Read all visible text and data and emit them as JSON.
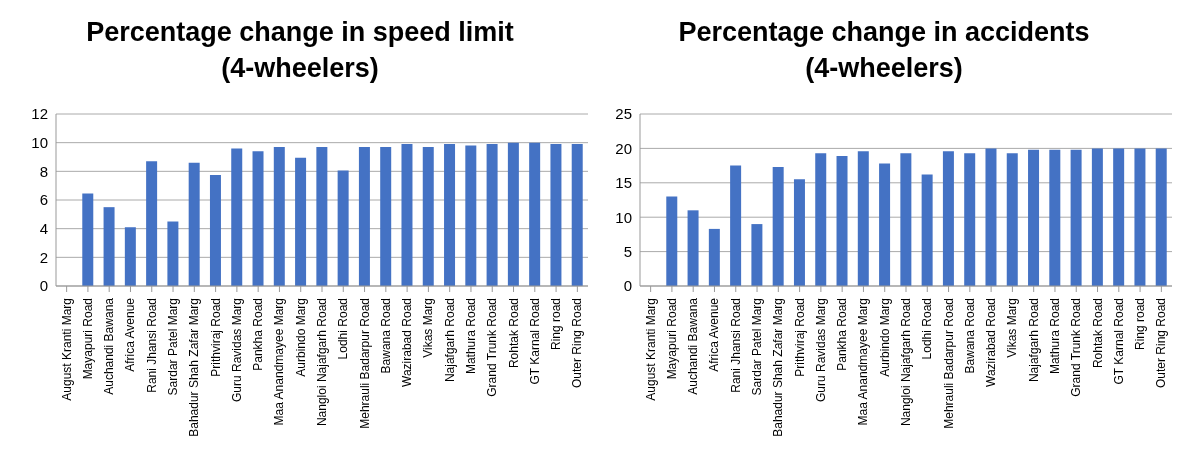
{
  "chart_data": [
    {
      "type": "bar",
      "title": "Percentage change in speed limit\n(4-wheelers)",
      "categories": [
        "August Kranti Marg",
        "Mayapuri Road",
        "Auchandi Bawana",
        "Africa Avenue",
        "Rani Jhansi Road",
        "Sardar Patel Marg",
        "Bahadur Shah Zafar Marg",
        "Prithviraj Road",
        "Guru Ravidas Marg",
        "Pankha Road",
        "Maa Anandmayee Marg",
        "Aurbindo Marg",
        "Nangloi Najafgarh Road",
        "Lodhi Road",
        "Mehrauli Badarpur Road",
        "Bawana Road",
        "Wazirabad Road",
        "Vikas Marg",
        "Najafgarh Road",
        "Mathura Road",
        "Grand Trunk Road",
        "Rohtak Road",
        "GT Karnal Road",
        "Ring road",
        "Outer Ring Road"
      ],
      "values": [
        0,
        6.45,
        5.5,
        4.1,
        8.7,
        4.5,
        8.6,
        7.75,
        9.6,
        9.4,
        9.7,
        8.95,
        9.7,
        8.05,
        9.7,
        9.7,
        9.9,
        9.7,
        9.9,
        9.8,
        9.9,
        10,
        10,
        9.9,
        9.9
      ],
      "color": "#4472c4",
      "ylim": [
        0,
        12
      ],
      "yticks": [
        0,
        2,
        4,
        6,
        8,
        10,
        12
      ],
      "grid": "y"
    },
    {
      "type": "bar",
      "title": "Percentage change in accidents\n(4-wheelers)",
      "categories": [
        "August Kranti Marg",
        "Mayapuri Road",
        "Auchandi Bawana",
        "Africa Avenue",
        "Rani Jhansi Road",
        "Sardar Patel Marg",
        "Bahadur Shah Zafar Marg",
        "Prithviraj Road",
        "Guru Ravidas Marg",
        "Pankha Road",
        "Maa Anandmayee Marg",
        "Aurbindo Marg",
        "Nangloi Najafgarh Road",
        "Lodhi Road",
        "Mehrauli Badarpur Road",
        "Bawana Road",
        "Wazirabad Road",
        "Vikas Marg",
        "Najafgarh Road",
        "Mathura Road",
        "Grand Trunk Road",
        "Rohtak Road",
        "GT Karnal Road",
        "Ring road",
        "Outer Ring Road"
      ],
      "values": [
        0,
        13,
        11,
        8.3,
        17.5,
        9,
        17.3,
        15.5,
        19.3,
        18.9,
        19.6,
        17.8,
        19.3,
        16.2,
        19.6,
        19.3,
        20,
        19.3,
        19.8,
        19.8,
        19.8,
        20,
        20,
        20,
        20
      ],
      "color": "#4472c4",
      "ylim": [
        0,
        25
      ],
      "yticks": [
        0,
        5,
        10,
        15,
        20,
        25
      ],
      "grid": "y"
    }
  ]
}
